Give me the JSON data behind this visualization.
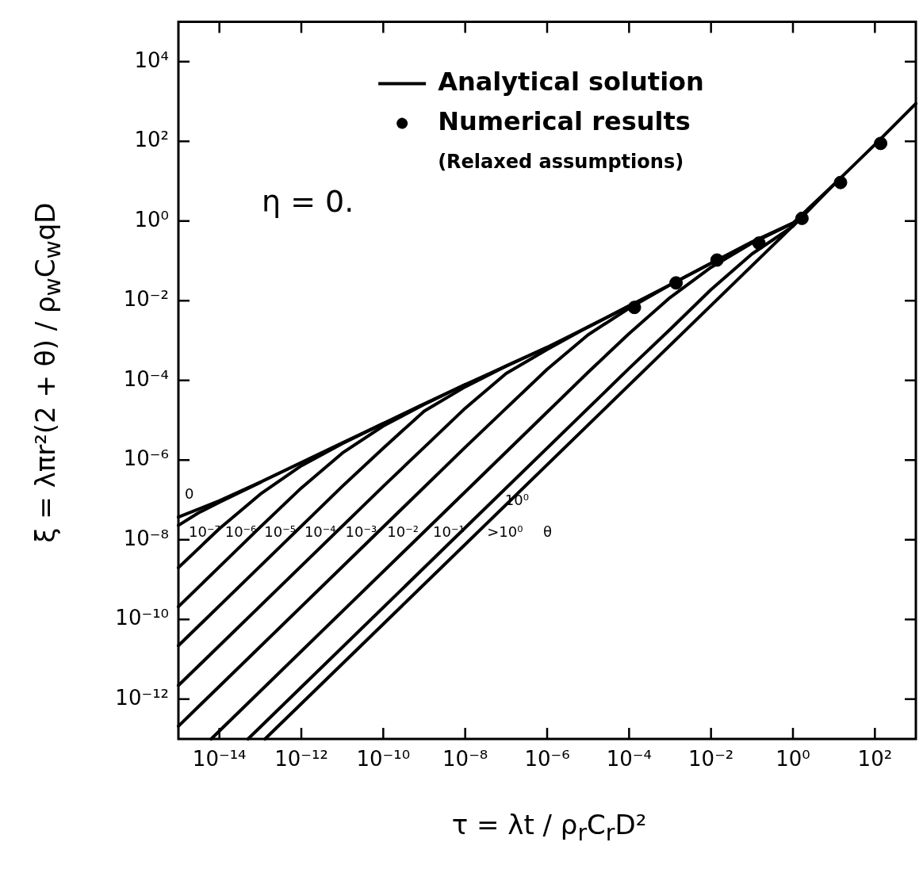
{
  "chart_data": {
    "type": "line",
    "xlabel": "τ = λt / ρ$_{r}$C$_{r}$D²",
    "ylabel": "ξ = λπr²(2 + θ) / ρ$_{w}$C$_{w}$qD",
    "log": "xy",
    "grid": false,
    "legend": "top",
    "xlim": [
      1e-15,
      1000.0
    ],
    "ylim": [
      1e-13,
      100000.0
    ],
    "xticks": [
      {
        "value": 1e-14,
        "label": "10⁻¹⁴"
      },
      {
        "value": 1e-12,
        "label": "10⁻¹²"
      },
      {
        "value": 1e-10,
        "label": "10⁻¹⁰"
      },
      {
        "value": 1e-08,
        "label": "10⁻⁸"
      },
      {
        "value": 1e-06,
        "label": "10⁻⁶"
      },
      {
        "value": 0.0001,
        "label": "10⁻⁴"
      },
      {
        "value": 0.01,
        "label": "10⁻²"
      },
      {
        "value": 1,
        "label": "10⁰"
      },
      {
        "value": 100,
        "label": "10²"
      }
    ],
    "yticks": [
      {
        "value": 1e-12,
        "label": "10⁻¹²"
      },
      {
        "value": 1e-10,
        "label": "10⁻¹⁰"
      },
      {
        "value": 1e-08,
        "label": "10⁻⁸"
      },
      {
        "value": 1e-06,
        "label": "10⁻⁶"
      },
      {
        "value": 0.0001,
        "label": "10⁻⁴"
      },
      {
        "value": 0.01,
        "label": "10⁻²"
      },
      {
        "value": 1,
        "label": "10⁰"
      },
      {
        "value": 100,
        "label": "10²"
      },
      {
        "value": 10000,
        "label": "10⁴"
      }
    ],
    "series": [
      {
        "name": "Analytical solution",
        "color": "#000000",
        "x": [
          1e-15,
          1e-14,
          1e-13,
          1e-12,
          1e-11,
          1e-10,
          1e-09,
          1e-08,
          1e-07,
          1e-06,
          1e-05,
          0.0001,
          0.001,
          0.01,
          0.1,
          1,
          10,
          100,
          1000
        ],
        "values": [
          3.7e-08,
          9.5e-08,
          2.8e-07,
          8.7e-07,
          2.7e-06,
          8.3e-06,
          2.6e-05,
          7.9e-05,
          0.00023,
          0.00068,
          0.0022,
          0.0074,
          0.025,
          0.087,
          0.3,
          0.89,
          8.3,
          83,
          890
        ]
      },
      {
        "color": "#000000",
        "x": [
          1e-15,
          3.16e-15,
          1e-14,
          1e-13
        ],
        "values": [
          2.3e-08,
          4.8e-08,
          8.7e-08,
          2.75e-07
        ]
      },
      {
        "color": "#000000",
        "x": [
          1e-15,
          1e-14,
          1e-13,
          1e-12,
          1e-11,
          1e-10
        ],
        "values": [
          2e-09,
          1.9e-08,
          1.4e-07,
          7.2e-07,
          2.6e-06,
          8.3e-06
        ]
      },
      {
        "color": "#000000",
        "x": [
          1e-15,
          1e-14,
          1e-13,
          1e-12,
          1e-11,
          1e-10,
          1e-09,
          1e-08
        ],
        "values": [
          2.1e-10,
          2.1e-09,
          2.1e-08,
          2e-07,
          1.5e-06,
          7.2e-06,
          2.5e-05,
          7.9e-05
        ]
      },
      {
        "color": "#000000",
        "x": [
          1e-15,
          1e-12,
          1e-11,
          1e-10,
          1e-09,
          1e-08,
          1e-07,
          1e-06
        ],
        "values": [
          2.2e-11,
          2.2e-08,
          2.2e-07,
          2e-06,
          1.7e-05,
          6.9e-05,
          0.00023,
          0.00068
        ]
      },
      {
        "color": "#000000",
        "x": [
          1e-15,
          1e-10,
          1e-09,
          1e-08,
          1e-07,
          1e-06,
          1e-05,
          0.0001
        ],
        "values": [
          2.2e-12,
          2.2e-07,
          2.1e-06,
          2e-05,
          0.00015,
          0.0006,
          0.0022,
          0.0074
        ]
      },
      {
        "color": "#000000",
        "x": [
          1e-15,
          1e-08,
          1e-07,
          1e-06,
          1e-05,
          0.0001,
          0.001,
          0.01
        ],
        "values": [
          2.1e-13,
          2.1e-06,
          2e-05,
          0.00019,
          0.0014,
          0.0065,
          0.025,
          0.087
        ]
      },
      {
        "color": "#000000",
        "x": [
          6.3e-15,
          1e-06,
          1e-05,
          0.0001,
          0.001,
          0.01,
          0.1,
          1
        ],
        "values": [
          1e-13,
          1.6e-05,
          0.00016,
          0.0015,
          0.012,
          0.069,
          0.28,
          0.89
        ]
      },
      {
        "color": "#000000",
        "x": [
          5e-14,
          0.0001,
          0.001,
          0.01,
          0.1,
          1,
          10
        ],
        "values": [
          1e-13,
          0.0002,
          0.0019,
          0.019,
          0.15,
          0.74,
          8.3
        ]
      },
      {
        "color": "#000000",
        "x": [
          1.3e-13,
          1
        ],
        "values": [
          1e-13,
          0.76
        ]
      },
      {
        "name": "Numerical results",
        "type": "scatter",
        "marker": "circle",
        "color": "#000000",
        "x": [
          0.000135,
          0.0014,
          0.014,
          0.148,
          1.66,
          14.5,
          138
        ],
        "values": [
          0.0068,
          0.028,
          0.105,
          0.28,
          1.17,
          9.3,
          89
        ]
      }
    ],
    "annotations": [
      "(Relaxed assumptions)",
      "η = 0.",
      "0",
      "10⁻⁷",
      "10⁻⁶",
      "10⁻⁵",
      "10⁻⁴",
      "10⁻³",
      "10⁻²",
      "10⁻¹",
      "10⁰",
      ">10⁰",
      "θ"
    ]
  }
}
